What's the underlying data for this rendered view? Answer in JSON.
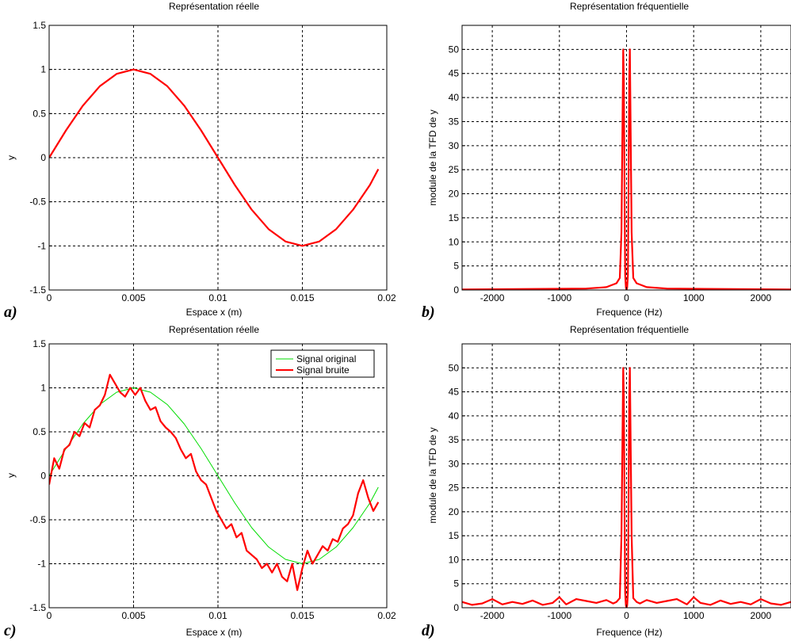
{
  "chart_data": [
    {
      "id": "a",
      "panel_label": "a)",
      "type": "line",
      "title": "Représentation réelle",
      "xlabel": "Espace x (m)",
      "ylabel": "y",
      "xlim": [
        0,
        0.02
      ],
      "ylim": [
        -1.5,
        1.5
      ],
      "xticks": [
        0,
        0.005,
        0.01,
        0.015,
        0.02
      ],
      "xtick_labels": [
        "0",
        "0.005",
        "0.01",
        "0.015",
        "0.02"
      ],
      "yticks": [
        -1.5,
        -1,
        -0.5,
        0,
        0.5,
        1,
        1.5
      ],
      "ytick_labels": [
        "-1.5",
        "-1",
        "-0.5",
        "0",
        "0.5",
        "1",
        "1.5"
      ],
      "grid": true,
      "series": [
        {
          "color": "#ff0000",
          "x": [
            0,
            0.001,
            0.002,
            0.003,
            0.004,
            0.005,
            0.006,
            0.007,
            0.008,
            0.009,
            0.01,
            0.011,
            0.012,
            0.013,
            0.014,
            0.015,
            0.016,
            0.017,
            0.018,
            0.019,
            0.0195
          ],
          "y": [
            0,
            0.31,
            0.59,
            0.81,
            0.95,
            1.0,
            0.95,
            0.81,
            0.59,
            0.31,
            0,
            -0.31,
            -0.59,
            -0.81,
            -0.95,
            -1.0,
            -0.95,
            -0.81,
            -0.59,
            -0.31,
            -0.13
          ]
        }
      ]
    },
    {
      "id": "b",
      "panel_label": "b)",
      "type": "line",
      "title": "Représentation fréquentielle",
      "xlabel": "Frequence (Hz)",
      "ylabel": "module de la TFD de y",
      "xlim": [
        -2450,
        2450
      ],
      "ylim": [
        0,
        55
      ],
      "xticks": [
        -2000,
        -1000,
        0,
        1000,
        2000
      ],
      "xtick_labels": [
        "-2000",
        "-1000",
        "0",
        "1000",
        "2000"
      ],
      "yticks": [
        0,
        5,
        10,
        15,
        20,
        25,
        30,
        35,
        40,
        45,
        50
      ],
      "ytick_labels": [
        "0",
        "5",
        "10",
        "15",
        "20",
        "25",
        "30",
        "35",
        "40",
        "45",
        "50"
      ],
      "grid": true,
      "series": [
        {
          "color": "#ff0000",
          "x": [
            -2450,
            -600,
            -300,
            -150,
            -100,
            -75,
            -50,
            -40,
            -30,
            -20,
            -10,
            0,
            10,
            20,
            30,
            40,
            50,
            75,
            100,
            150,
            300,
            600,
            2450
          ],
          "y": [
            0.1,
            0.3,
            0.6,
            1.4,
            2.5,
            12,
            50,
            44,
            20,
            3,
            0.5,
            0,
            0.5,
            3,
            20,
            44,
            50,
            12,
            2.5,
            1.4,
            0.6,
            0.3,
            0.1
          ]
        }
      ]
    },
    {
      "id": "c",
      "panel_label": "c)",
      "type": "line",
      "title": "Représentation réelle",
      "xlabel": "Espace x (m)",
      "ylabel": "y",
      "xlim": [
        0,
        0.02
      ],
      "ylim": [
        -1.5,
        1.5
      ],
      "xticks": [
        0,
        0.005,
        0.01,
        0.015,
        0.02
      ],
      "xtick_labels": [
        "0",
        "0.005",
        "0.01",
        "0.015",
        "0.02"
      ],
      "yticks": [
        -1.5,
        -1,
        -0.5,
        0,
        0.5,
        1,
        1.5
      ],
      "ytick_labels": [
        "-1.5",
        "-1",
        "-0.5",
        "0",
        "0.5",
        "1",
        "1.5"
      ],
      "grid": true,
      "legend": "top-right",
      "series": [
        {
          "name": "Signal original",
          "color": "#00dd00",
          "x": [
            0,
            0.001,
            0.002,
            0.003,
            0.004,
            0.005,
            0.006,
            0.007,
            0.008,
            0.009,
            0.01,
            0.011,
            0.012,
            0.013,
            0.014,
            0.015,
            0.016,
            0.017,
            0.018,
            0.019,
            0.0195
          ],
          "y": [
            0,
            0.31,
            0.59,
            0.81,
            0.95,
            1.0,
            0.95,
            0.81,
            0.59,
            0.31,
            0,
            -0.31,
            -0.59,
            -0.81,
            -0.95,
            -1.0,
            -0.95,
            -0.81,
            -0.59,
            -0.31,
            -0.13
          ]
        },
        {
          "name": "Signal bruite",
          "color": "#ff0000",
          "x": [
            0,
            0.0003,
            0.0006,
            0.0009,
            0.0012,
            0.0015,
            0.0018,
            0.0021,
            0.0024,
            0.0027,
            0.003,
            0.0033,
            0.0036,
            0.0039,
            0.0042,
            0.0045,
            0.0048,
            0.0051,
            0.0054,
            0.0057,
            0.006,
            0.0063,
            0.0066,
            0.0069,
            0.0072,
            0.0075,
            0.0078,
            0.0081,
            0.0084,
            0.0087,
            0.009,
            0.0093,
            0.0096,
            0.0099,
            0.0102,
            0.0105,
            0.0108,
            0.0111,
            0.0114,
            0.0117,
            0.012,
            0.0123,
            0.0126,
            0.0129,
            0.0132,
            0.0135,
            0.0138,
            0.0141,
            0.0144,
            0.0147,
            0.015,
            0.0153,
            0.0156,
            0.0159,
            0.0162,
            0.0165,
            0.0168,
            0.0171,
            0.0174,
            0.0177,
            0.018,
            0.0183,
            0.0186,
            0.0189,
            0.0192,
            0.0195
          ],
          "y": [
            -0.1,
            0.2,
            0.08,
            0.3,
            0.35,
            0.5,
            0.45,
            0.6,
            0.55,
            0.75,
            0.8,
            0.92,
            1.15,
            1.05,
            0.95,
            0.9,
            1.0,
            0.92,
            1.0,
            0.85,
            0.75,
            0.78,
            0.62,
            0.55,
            0.5,
            0.43,
            0.3,
            0.2,
            0.25,
            0.05,
            -0.05,
            -0.1,
            -0.25,
            -0.4,
            -0.5,
            -0.6,
            -0.55,
            -0.7,
            -0.65,
            -0.85,
            -0.9,
            -0.95,
            -1.05,
            -1.0,
            -1.1,
            -1.0,
            -1.15,
            -1.2,
            -1.0,
            -1.3,
            -1.05,
            -0.85,
            -1.0,
            -0.9,
            -0.8,
            -0.85,
            -0.72,
            -0.75,
            -0.6,
            -0.55,
            -0.45,
            -0.2,
            -0.05,
            -0.25,
            -0.4,
            -0.3
          ]
        }
      ]
    },
    {
      "id": "d",
      "panel_label": "d)",
      "type": "line",
      "title": "Représentation fréquentielle",
      "xlabel": "Frequence (Hz)",
      "ylabel": "module de la TFD de y",
      "xlim": [
        -2450,
        2450
      ],
      "ylim": [
        0,
        55
      ],
      "xticks": [
        -2000,
        -1000,
        0,
        1000,
        2000
      ],
      "xtick_labels": [
        "-2000",
        "-1000",
        "0",
        "1000",
        "2000"
      ],
      "yticks": [
        0,
        5,
        10,
        15,
        20,
        25,
        30,
        35,
        40,
        45,
        50
      ],
      "ytick_labels": [
        "0",
        "5",
        "10",
        "15",
        "20",
        "25",
        "30",
        "35",
        "40",
        "45",
        "50"
      ],
      "grid": true,
      "series": [
        {
          "color": "#ff0000",
          "x": [
            -2450,
            -2300,
            -2150,
            -2000,
            -1850,
            -1700,
            -1550,
            -1400,
            -1250,
            -1100,
            -1000,
            -900,
            -750,
            -600,
            -450,
            -300,
            -200,
            -150,
            -100,
            -75,
            -50,
            -40,
            -30,
            -20,
            -10,
            0,
            10,
            20,
            30,
            40,
            50,
            75,
            100,
            150,
            200,
            300,
            450,
            600,
            750,
            900,
            1000,
            1100,
            1250,
            1400,
            1550,
            1700,
            1850,
            2000,
            2150,
            2300,
            2450
          ],
          "y": [
            1.2,
            0.6,
            0.9,
            1.8,
            0.7,
            1.2,
            0.8,
            1.5,
            0.6,
            1.0,
            2.2,
            0.7,
            1.8,
            1.4,
            1.0,
            1.6,
            0.9,
            1.2,
            2.0,
            15,
            50,
            44,
            20,
            3,
            0.5,
            0,
            0.5,
            3,
            20,
            44,
            50,
            15,
            2.0,
            1.2,
            0.9,
            1.6,
            1.0,
            1.4,
            1.8,
            0.7,
            2.2,
            1.0,
            0.6,
            1.5,
            0.8,
            1.2,
            0.7,
            1.8,
            0.9,
            0.6,
            1.2
          ]
        }
      ]
    }
  ]
}
